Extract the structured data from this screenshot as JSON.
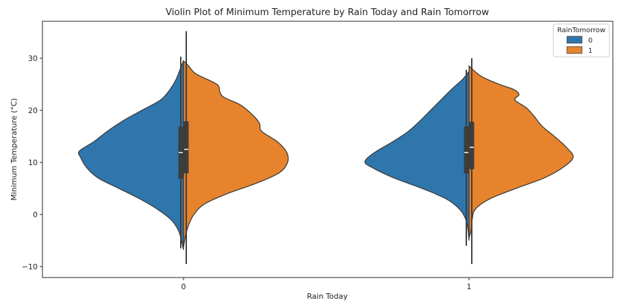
{
  "chart_data": {
    "type": "violin",
    "split": true,
    "title": "Violin Plot of Minimum Temperature by Rain Today and Rain Tomorrow",
    "xlabel": "Rain Today",
    "ylabel": "Minimum Temperature (°C)",
    "categories": [
      "0",
      "1"
    ],
    "ylim": [
      -12,
      36
    ],
    "yticks": [
      -10,
      0,
      10,
      20,
      30
    ],
    "legend": {
      "title": "RainTomorrow",
      "placement": "top-right",
      "entries": [
        {
          "label": "0",
          "color": "#2f76ad"
        },
        {
          "label": "1",
          "color": "#e6832c"
        }
      ]
    },
    "groups": [
      {
        "category": "0",
        "halves": [
          {
            "hue": "0",
            "color": "#2f76ad",
            "side": "left",
            "density": [
              [
                -6.8,
                0.0
              ],
              [
                -5,
                0.02
              ],
              [
                -3,
                0.05
              ],
              [
                -1,
                0.12
              ],
              [
                1,
                0.25
              ],
              [
                3,
                0.42
              ],
              [
                5,
                0.62
              ],
              [
                7,
                0.82
              ],
              [
                9,
                0.93
              ],
              [
                11,
                0.99
              ],
              [
                12.2,
                1.0
              ],
              [
                14,
                0.86
              ],
              [
                16,
                0.73
              ],
              [
                18,
                0.58
              ],
              [
                20,
                0.4
              ],
              [
                22,
                0.22
              ],
              [
                24,
                0.13
              ],
              [
                26,
                0.07
              ],
              [
                28,
                0.03
              ],
              [
                29.5,
                0.0
              ]
            ],
            "quartiles": [
              6.9,
              11.9,
              16.9
            ],
            "whiskers": [
              -6.5,
              30.3
            ]
          },
          {
            "hue": "1",
            "color": "#e6832c",
            "side": "right",
            "density": [
              [
                -6.3,
                0.0
              ],
              [
                -4,
                0.02
              ],
              [
                -2,
                0.05
              ],
              [
                0,
                0.1
              ],
              [
                2,
                0.2
              ],
              [
                4,
                0.42
              ],
              [
                6,
                0.7
              ],
              [
                8,
                0.92
              ],
              [
                10,
                1.0
              ],
              [
                12,
                0.99
              ],
              [
                14,
                0.9
              ],
              [
                16,
                0.75
              ],
              [
                17.5,
                0.73
              ],
              [
                19,
                0.67
              ],
              [
                21,
                0.55
              ],
              [
                22.5,
                0.39
              ],
              [
                23.5,
                0.35
              ],
              [
                25,
                0.32
              ],
              [
                27,
                0.12
              ],
              [
                28.5,
                0.05
              ],
              [
                29.5,
                0.0
              ]
            ],
            "quartiles": [
              7.9,
              12.5,
              17.9
            ],
            "whiskers": [
              -9.5,
              35.2
            ]
          }
        ]
      },
      {
        "category": "1",
        "halves": [
          {
            "hue": "0",
            "color": "#2f76ad",
            "side": "left",
            "density": [
              [
                -5,
                0.0
              ],
              [
                -3,
                0.01
              ],
              [
                -1,
                0.03
              ],
              [
                1,
                0.09
              ],
              [
                3,
                0.22
              ],
              [
                5,
                0.45
              ],
              [
                7,
                0.72
              ],
              [
                9,
                0.93
              ],
              [
                10.2,
                1.0
              ],
              [
                12,
                0.9
              ],
              [
                14,
                0.73
              ],
              [
                16,
                0.58
              ],
              [
                18,
                0.47
              ],
              [
                20,
                0.37
              ],
              [
                22,
                0.27
              ],
              [
                24,
                0.17
              ],
              [
                26,
                0.06
              ],
              [
                27.5,
                0.0
              ]
            ],
            "quartiles": [
              7.9,
              11.9,
              16.9
            ],
            "whiskers": [
              -6.0,
              27.8
            ]
          },
          {
            "hue": "1",
            "color": "#e6832c",
            "side": "right",
            "density": [
              [
                -4.5,
                0.0
              ],
              [
                -3,
                0.02
              ],
              [
                -1,
                0.03
              ],
              [
                1,
                0.06
              ],
              [
                3,
                0.2
              ],
              [
                5,
                0.45
              ],
              [
                7,
                0.72
              ],
              [
                9,
                0.9
              ],
              [
                11,
                1.0
              ],
              [
                13,
                0.93
              ],
              [
                15,
                0.82
              ],
              [
                17,
                0.7
              ],
              [
                19,
                0.62
              ],
              [
                20.5,
                0.55
              ],
              [
                22,
                0.44
              ],
              [
                23,
                0.48
              ],
              [
                24,
                0.43
              ],
              [
                25,
                0.29
              ],
              [
                26.5,
                0.12
              ],
              [
                28.5,
                0.0
              ]
            ],
            "quartiles": [
              8.7,
              12.9,
              17.8
            ],
            "whiskers": [
              -9.5,
              30.0
            ]
          }
        ]
      }
    ]
  }
}
